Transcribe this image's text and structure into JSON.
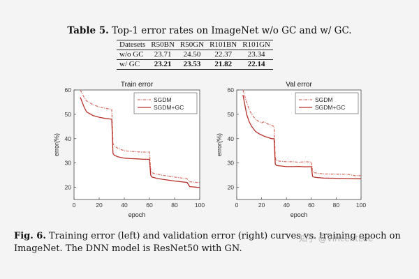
{
  "table_caption": {
    "label": "Table 5.",
    "text": "Top-1 error rates on ImageNet w/o GC and w/ GC."
  },
  "table": {
    "headers": [
      "Datesets",
      "R50BN",
      "R50GN",
      "R101BN",
      "R101GN"
    ],
    "rows": [
      [
        "w/o GC",
        "23.71",
        "24.50",
        "22.37",
        "23.34"
      ],
      [
        "w/ GC",
        "23.21",
        "23.53",
        "21.82",
        "22.14"
      ]
    ]
  },
  "figure_caption": {
    "label": "Fig. 6.",
    "text": "Training error (left) and validation error (right) curves vs. training epoch on ImageNet. The DNN model is ResNet50 with GN."
  },
  "watermark": "知乎 @VincentLee",
  "colors": {
    "sgdm": "#d9736a",
    "sgdm_gc": "#b8302a"
  },
  "chart_data": [
    {
      "type": "line",
      "title": "Train error",
      "xlabel": "epoch",
      "ylabel": "error(%)",
      "xlim": [
        0,
        100
      ],
      "ylim": [
        15,
        60
      ],
      "xticks": [
        0,
        20,
        40,
        60,
        80,
        100
      ],
      "yticks": [
        20,
        30,
        40,
        50,
        60
      ],
      "legend_position": "top-right",
      "x": [
        5,
        8,
        10,
        15,
        20,
        25,
        30,
        31,
        32,
        35,
        40,
        45,
        50,
        55,
        60,
        61,
        62,
        65,
        70,
        80,
        90,
        92,
        94,
        96,
        98,
        100
      ],
      "series": [
        {
          "name": "SGDM",
          "style": "dashdot",
          "values": [
            60,
            57,
            55.5,
            54,
            53,
            52.5,
            52,
            38,
            37,
            36,
            35,
            34.8,
            34.6,
            34.5,
            34.5,
            27,
            26,
            25.5,
            25,
            24.2,
            23.5,
            22.3,
            22.2,
            22.1,
            22,
            22
          ]
        },
        {
          "name": "SGDM+GC",
          "style": "solid",
          "values": [
            57,
            53,
            51,
            49.5,
            48.8,
            48.3,
            48,
            34,
            33.2,
            32.5,
            32,
            31.8,
            31.7,
            31.5,
            31.5,
            25,
            24.2,
            23.8,
            23.3,
            22.6,
            22,
            20.3,
            20.2,
            20.1,
            20,
            20
          ]
        }
      ]
    },
    {
      "type": "line",
      "title": "Val error",
      "xlabel": "epoch",
      "ylabel": "error(%)",
      "xlim": [
        0,
        100
      ],
      "ylim": [
        15,
        60
      ],
      "xticks": [
        0,
        20,
        40,
        60,
        80,
        100
      ],
      "yticks": [
        20,
        30,
        40,
        50,
        60
      ],
      "legend_position": "top-right",
      "x": [
        5,
        8,
        10,
        12,
        15,
        18,
        20,
        22,
        25,
        28,
        30,
        31,
        32,
        35,
        40,
        45,
        50,
        55,
        60,
        61,
        62,
        65,
        70,
        80,
        90,
        95,
        100
      ],
      "series": [
        {
          "name": "SGDM",
          "style": "dashdot",
          "values": [
            60,
            55,
            52,
            50,
            48,
            47,
            46.5,
            47,
            46,
            45.5,
            45,
            32,
            31,
            30.7,
            30.5,
            30.5,
            30.3,
            30.5,
            30.4,
            26.5,
            26,
            25.8,
            25.5,
            25.4,
            25.3,
            24.8,
            24.8
          ]
        },
        {
          "name": "SGDM+GC",
          "style": "solid",
          "values": [
            58,
            50,
            47,
            45,
            43,
            42,
            41.5,
            41,
            40.5,
            40,
            40,
            29.5,
            29,
            28.8,
            28.5,
            28.5,
            28.6,
            28.4,
            28.5,
            24.5,
            24.2,
            24,
            23.8,
            23.7,
            23.6,
            23.5,
            23.5
          ]
        }
      ]
    }
  ]
}
